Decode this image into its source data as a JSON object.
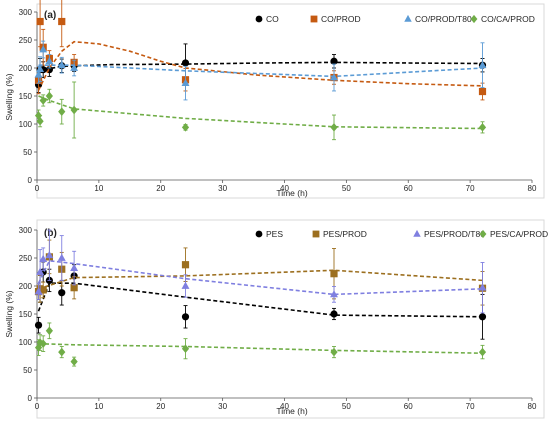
{
  "chart_data": [
    {
      "type": "scatter",
      "panel_label": "(a)",
      "xlabel": "Time (h)",
      "ylabel": "Swelling (%)",
      "xlim": [
        0,
        80
      ],
      "ylim": [
        0,
        300
      ],
      "xticks": [
        "0",
        "10",
        "20",
        "30",
        "40",
        "50",
        "60",
        "70",
        "80"
      ],
      "yticks": [
        "0",
        "50",
        "100",
        "150",
        "200",
        "250",
        "300"
      ],
      "grid": false,
      "legend_position": "top-right",
      "series": [
        {
          "name": "CO",
          "color": "#000000",
          "marker": "circle",
          "points": [
            [
              0.25,
              170,
              14
            ],
            [
              0.5,
              197,
              20
            ],
            [
              1,
              197,
              14
            ],
            [
              2,
              197,
              12
            ],
            [
              4,
              204,
              12
            ],
            [
              6,
              204,
              10
            ],
            [
              24,
              209,
              34
            ],
            [
              48,
              212,
              12
            ],
            [
              72,
              205,
              12
            ]
          ],
          "fit": [
            [
              0.25,
              195
            ],
            [
              4,
              203
            ],
            [
              6,
              204
            ],
            [
              12,
              206
            ],
            [
              24,
              207
            ],
            [
              36,
              209
            ],
            [
              48,
              210
            ],
            [
              60,
              209
            ],
            [
              72,
              208
            ]
          ]
        },
        {
          "name": "CO/PROD",
          "color": "#c55a11",
          "marker": "square",
          "points": [
            [
              0.25,
              178,
              24
            ],
            [
              0.5,
              283,
              45
            ],
            [
              1,
              237,
              32
            ],
            [
              2,
              217,
              14
            ],
            [
              4,
              283,
              45
            ],
            [
              6,
              210,
              14
            ],
            [
              24,
              179,
              20
            ],
            [
              48,
              183,
              12
            ],
            [
              72,
              158,
              15
            ]
          ],
          "fit": [
            [
              0.25,
              160
            ],
            [
              2,
              200
            ],
            [
              4,
              230
            ],
            [
              6,
              247
            ],
            [
              10,
              243
            ],
            [
              15,
              230
            ],
            [
              20,
              212
            ],
            [
              24,
              200
            ],
            [
              36,
              187
            ],
            [
              48,
              178
            ],
            [
              60,
              172
            ],
            [
              72,
              168
            ]
          ]
        },
        {
          "name": "CO/PROD/T80",
          "color": "#5b9bd5",
          "marker": "triangle",
          "points": [
            [
              0.25,
              188,
              15
            ],
            [
              0.5,
              198,
              22
            ],
            [
              1,
              233,
              15
            ],
            [
              2,
              212,
              12
            ],
            [
              4,
              205,
              14
            ],
            [
              6,
              200,
              14
            ],
            [
              24,
              173,
              30
            ],
            [
              48,
              183,
              24
            ],
            [
              72,
              205,
              40
            ]
          ],
          "fit": [
            [
              0.25,
              205
            ],
            [
              6,
              205
            ],
            [
              24,
              195
            ],
            [
              48,
              185
            ],
            [
              72,
              200
            ]
          ]
        },
        {
          "name": "CO/CA/PROD",
          "color": "#70ad47",
          "marker": "diamond",
          "points": [
            [
              0.25,
              115,
              10
            ],
            [
              0.5,
              105,
              10
            ],
            [
              1,
              142,
              10
            ],
            [
              2,
              150,
              12
            ],
            [
              4,
              122,
              22
            ],
            [
              6,
              125,
              50
            ],
            [
              24,
              94,
              5
            ],
            [
              48,
              94,
              22
            ],
            [
              72,
              94,
              10
            ]
          ],
          "fit": [
            [
              0.25,
              150
            ],
            [
              2,
              142
            ],
            [
              6,
              127
            ],
            [
              24,
              110
            ],
            [
              48,
              95
            ],
            [
              72,
              92
            ]
          ]
        }
      ]
    },
    {
      "type": "scatter",
      "panel_label": "(b)",
      "xlabel": "Time (h)",
      "ylabel": "Swelling (%)",
      "xlim": [
        0,
        80
      ],
      "ylim": [
        0,
        300
      ],
      "xticks": [
        "0",
        "10",
        "20",
        "30",
        "40",
        "50",
        "60",
        "70",
        "80"
      ],
      "yticks": [
        "0",
        "50",
        "100",
        "150",
        "200",
        "250",
        "300"
      ],
      "grid": false,
      "legend_position": "top-right",
      "series": [
        {
          "name": "PES",
          "color": "#000000",
          "marker": "circle",
          "points": [
            [
              0.25,
              130,
              14
            ],
            [
              0.5,
              195,
              24
            ],
            [
              1,
              225,
              18
            ],
            [
              2,
              210,
              20
            ],
            [
              4,
              188,
              22
            ],
            [
              6,
              218,
              20
            ],
            [
              24,
              145,
              20
            ],
            [
              48,
              150,
              10
            ],
            [
              72,
              145,
              40
            ]
          ],
          "fit": [
            [
              0.25,
              155
            ],
            [
              2,
              205
            ],
            [
              6,
              205
            ],
            [
              24,
              180
            ],
            [
              48,
              148
            ],
            [
              72,
              145
            ]
          ]
        },
        {
          "name": "PES/PROD",
          "color": "#9c6f1f",
          "marker": "square",
          "points": [
            [
              0.25,
              190,
              14
            ],
            [
              0.5,
              195,
              24
            ],
            [
              1,
              193,
              14
            ],
            [
              2,
              252,
              30
            ],
            [
              4,
              230,
              30
            ],
            [
              6,
              197,
              20
            ],
            [
              24,
              238,
              30
            ],
            [
              48,
              222,
              45
            ],
            [
              72,
              196,
              30
            ]
          ],
          "fit": [
            [
              0.25,
              195
            ],
            [
              6,
              215
            ],
            [
              24,
              218
            ],
            [
              48,
              228
            ],
            [
              72,
              210
            ]
          ]
        },
        {
          "name": "PES/PROD/T80",
          "color": "#7f7fe0",
          "marker": "triangle",
          "points": [
            [
              0.25,
              190,
              14
            ],
            [
              0.5,
              225,
              40
            ],
            [
              1,
              248,
              20
            ],
            [
              2,
              255,
              45
            ],
            [
              4,
              250,
              40
            ],
            [
              6,
              232,
              30
            ],
            [
              24,
              200,
              20
            ],
            [
              48,
              185,
              14
            ],
            [
              72,
              197,
              45
            ]
          ],
          "fit": [
            [
              0.25,
              205
            ],
            [
              2,
              245
            ],
            [
              6,
              240
            ],
            [
              24,
              213
            ],
            [
              48,
              185
            ],
            [
              72,
              195
            ]
          ]
        },
        {
          "name": "PES/CA/PROD",
          "color": "#70ad47",
          "marker": "diamond",
          "points": [
            [
              0.25,
              90,
              14
            ],
            [
              0.5,
              99,
              14
            ],
            [
              1,
              97,
              14
            ],
            [
              2,
              120,
              14
            ],
            [
              4,
              82,
              10
            ],
            [
              6,
              65,
              8
            ],
            [
              24,
              88,
              18
            ],
            [
              48,
              82,
              10
            ],
            [
              72,
              82,
              12
            ]
          ],
          "fit": [
            [
              0.25,
              97
            ],
            [
              6,
              95
            ],
            [
              24,
              92
            ],
            [
              48,
              85
            ],
            [
              72,
              80
            ]
          ]
        }
      ]
    }
  ]
}
